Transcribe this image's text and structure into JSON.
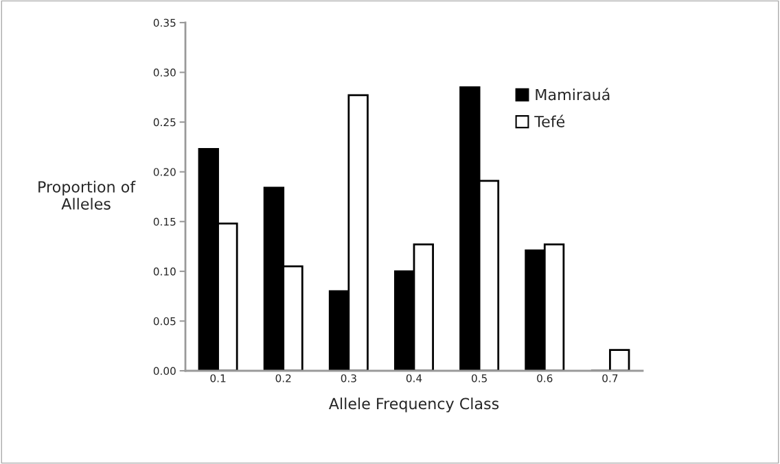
{
  "chart_data": {
    "type": "bar",
    "xlabel": "Allele Frequency Class",
    "ylabel": "Proportion of\nAlleles",
    "categories": [
      "0.1",
      "0.2",
      "0.3",
      "0.4",
      "0.5",
      "0.6",
      "0.7"
    ],
    "series": [
      {
        "name": "Mamirauá",
        "color": "#000000",
        "values": [
          0.223,
          0.184,
          0.08,
          0.1,
          0.285,
          0.121,
          0
        ]
      },
      {
        "name": "Tefé",
        "color": "#ffffff",
        "values": [
          0.148,
          0.105,
          0.277,
          0.127,
          0.191,
          0.127,
          0.021
        ]
      }
    ],
    "ylim": [
      0,
      0.35
    ],
    "yticks": [
      {
        "value": 0,
        "label": "0.00"
      },
      {
        "value": 0.05,
        "label": "0.05"
      },
      {
        "value": 0.1,
        "label": "0.10"
      },
      {
        "value": 0.15,
        "label": "0.15"
      },
      {
        "value": 0.2,
        "label": "0.20"
      },
      {
        "value": 0.25,
        "label": "0.25"
      },
      {
        "value": 0.3,
        "label": "0.30"
      },
      {
        "value": 0.35,
        "label": "0.35"
      }
    ],
    "grid": false,
    "legend": "top right"
  }
}
